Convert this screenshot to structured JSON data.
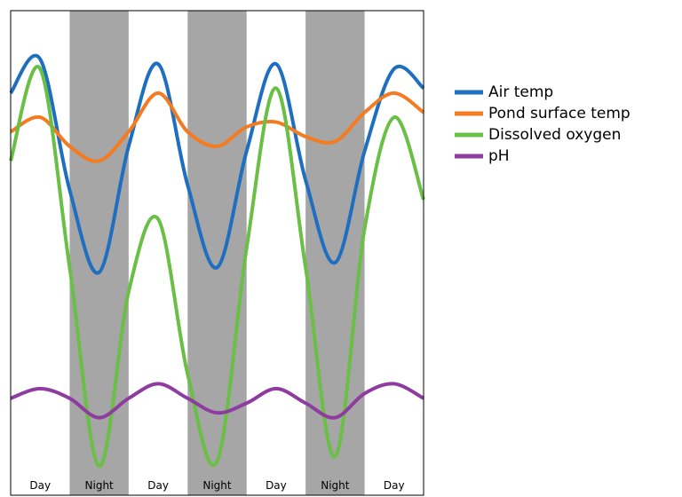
{
  "chart_data": {
    "type": "line",
    "categories": [
      "Day",
      "Night",
      "Day",
      "Night",
      "Day",
      "Night",
      "Day"
    ],
    "x": [
      0,
      0.5,
      1,
      1.5,
      2,
      2.5,
      3,
      3.5,
      4,
      4.5,
      5,
      5.5,
      6,
      6.5,
      7
    ],
    "xlim": [
      0,
      7
    ],
    "ylim": [
      0,
      100
    ],
    "shade_color": "#a6a6a6",
    "legend": "right",
    "series": [
      {
        "name": "Air temp",
        "color": "#1f6fc0",
        "values": [
          83,
          90,
          63,
          46,
          72,
          89,
          64,
          47,
          71,
          89,
          65,
          48,
          71,
          88,
          84
        ]
      },
      {
        "name": "Pond surface temp",
        "color": "#f47b20",
        "values": [
          75,
          78,
          72,
          69,
          75,
          83,
          75,
          72,
          76,
          77,
          74,
          73,
          79,
          83,
          79
        ]
      },
      {
        "name": "Dissolved oxygen",
        "color": "#6abf45",
        "values": [
          69,
          88,
          47,
          6,
          42,
          57,
          25,
          7,
          51,
          84,
          47,
          8,
          55,
          78,
          61
        ]
      },
      {
        "name": "pH",
        "color": "#8e3ca0",
        "values": [
          20,
          22,
          20,
          16,
          20,
          23,
          20,
          17,
          19,
          22,
          19,
          16,
          21,
          23,
          20
        ]
      }
    ]
  }
}
